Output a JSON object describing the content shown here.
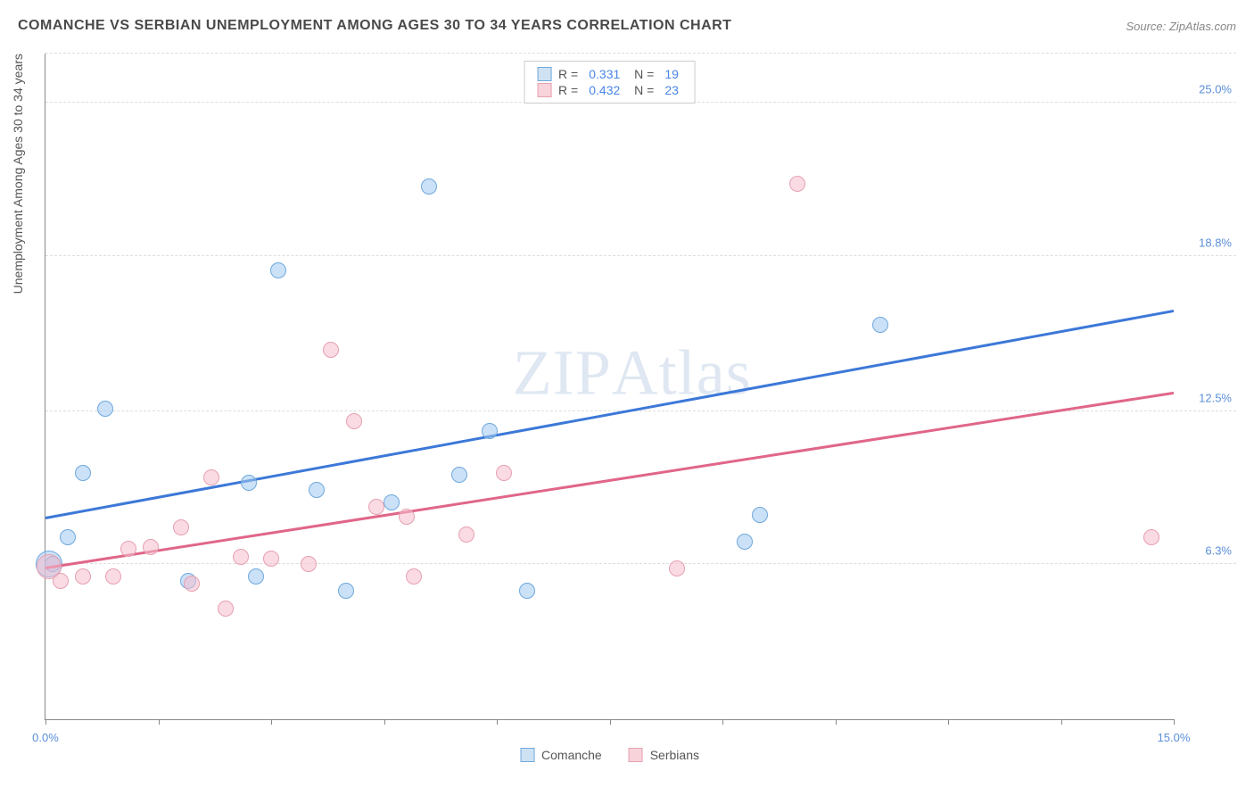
{
  "header": {
    "title": "COMANCHE VS SERBIAN UNEMPLOYMENT AMONG AGES 30 TO 34 YEARS CORRELATION CHART",
    "source": "Source: ZipAtlas.com"
  },
  "chart": {
    "type": "scatter",
    "y_label": "Unemployment Among Ages 30 to 34 years",
    "xlim": [
      0,
      15
    ],
    "ylim": [
      0,
      27
    ],
    "x_tick_positions": [
      0,
      1.5,
      3.0,
      4.5,
      6.0,
      7.5,
      9.0,
      10.5,
      12.0,
      13.5,
      15.0
    ],
    "x_tick_labels_shown": {
      "0": "0.0%",
      "15": "15.0%"
    },
    "y_ticks": [
      {
        "value": 6.3,
        "label": "6.3%"
      },
      {
        "value": 12.5,
        "label": "12.5%"
      },
      {
        "value": 18.8,
        "label": "18.8%"
      },
      {
        "value": 25.0,
        "label": "25.0%"
      }
    ],
    "y_top_gridline": 27,
    "grid_color": "#dddddd",
    "background_color": "#ffffff",
    "axis_color": "#888888",
    "watermark": "ZIPAtlas",
    "rn_legend": [
      {
        "swatch_fill": "#cfe2f3",
        "swatch_border": "#6fa8dc",
        "r": "0.331",
        "n": "19"
      },
      {
        "swatch_fill": "#f8d3da",
        "swatch_border": "#e6a0b0",
        "r": "0.432",
        "n": "23"
      }
    ],
    "bottom_legend": [
      {
        "swatch_fill": "#cfe2f3",
        "swatch_border": "#6fa8dc",
        "label": "Comanche"
      },
      {
        "swatch_fill": "#f8d3da",
        "swatch_border": "#e6a0b0",
        "label": "Serbians"
      }
    ],
    "series": [
      {
        "name": "Comanche",
        "fill": "rgba(160,200,240,0.55)",
        "border": "#6fa8dc",
        "marker_radius": 9,
        "trend": {
          "x1": 0,
          "y1": 8.2,
          "x2": 15,
          "y2": 16.6,
          "color": "#3c78d8"
        },
        "points": [
          {
            "x": 0.05,
            "y": 6.3,
            "r": 15
          },
          {
            "x": 0.1,
            "y": 6.3,
            "r": 9
          },
          {
            "x": 0.3,
            "y": 7.4,
            "r": 9
          },
          {
            "x": 0.5,
            "y": 10.0,
            "r": 9
          },
          {
            "x": 0.8,
            "y": 12.6,
            "r": 9
          },
          {
            "x": 1.9,
            "y": 5.6,
            "r": 9
          },
          {
            "x": 2.7,
            "y": 9.6,
            "r": 9
          },
          {
            "x": 2.8,
            "y": 5.8,
            "r": 9
          },
          {
            "x": 3.1,
            "y": 18.2,
            "r": 9
          },
          {
            "x": 3.6,
            "y": 9.3,
            "r": 9
          },
          {
            "x": 4.0,
            "y": 5.2,
            "r": 9
          },
          {
            "x": 4.6,
            "y": 8.8,
            "r": 9
          },
          {
            "x": 5.1,
            "y": 21.6,
            "r": 9
          },
          {
            "x": 5.5,
            "y": 9.9,
            "r": 9
          },
          {
            "x": 5.9,
            "y": 11.7,
            "r": 9
          },
          {
            "x": 6.4,
            "y": 5.2,
            "r": 9
          },
          {
            "x": 9.3,
            "y": 7.2,
            "r": 9
          },
          {
            "x": 9.5,
            "y": 8.3,
            "r": 9
          },
          {
            "x": 11.1,
            "y": 16.0,
            "r": 9
          }
        ]
      },
      {
        "name": "Serbians",
        "fill": "rgba(245,190,205,0.55)",
        "border": "#e6a0b0",
        "marker_radius": 9,
        "trend": {
          "x1": 0,
          "y1": 6.2,
          "x2": 15,
          "y2": 13.3,
          "color": "#e06688"
        },
        "points": [
          {
            "x": 0.05,
            "y": 6.2,
            "r": 14
          },
          {
            "x": 0.2,
            "y": 5.6,
            "r": 9
          },
          {
            "x": 0.5,
            "y": 5.8,
            "r": 9
          },
          {
            "x": 0.9,
            "y": 5.8,
            "r": 9
          },
          {
            "x": 1.1,
            "y": 6.9,
            "r": 9
          },
          {
            "x": 1.4,
            "y": 7.0,
            "r": 9
          },
          {
            "x": 1.8,
            "y": 7.8,
            "r": 9
          },
          {
            "x": 1.95,
            "y": 5.5,
            "r": 9
          },
          {
            "x": 2.2,
            "y": 9.8,
            "r": 9
          },
          {
            "x": 2.4,
            "y": 4.5,
            "r": 9
          },
          {
            "x": 2.6,
            "y": 6.6,
            "r": 9
          },
          {
            "x": 3.0,
            "y": 6.5,
            "r": 9
          },
          {
            "x": 3.5,
            "y": 6.3,
            "r": 9
          },
          {
            "x": 3.8,
            "y": 15.0,
            "r": 9
          },
          {
            "x": 4.1,
            "y": 12.1,
            "r": 9
          },
          {
            "x": 4.4,
            "y": 8.6,
            "r": 9
          },
          {
            "x": 4.8,
            "y": 8.2,
            "r": 9
          },
          {
            "x": 4.9,
            "y": 5.8,
            "r": 9
          },
          {
            "x": 5.6,
            "y": 7.5,
            "r": 9
          },
          {
            "x": 6.1,
            "y": 10.0,
            "r": 9
          },
          {
            "x": 8.4,
            "y": 6.1,
            "r": 9
          },
          {
            "x": 10.0,
            "y": 21.7,
            "r": 9
          },
          {
            "x": 14.7,
            "y": 7.4,
            "r": 9
          }
        ]
      }
    ]
  }
}
